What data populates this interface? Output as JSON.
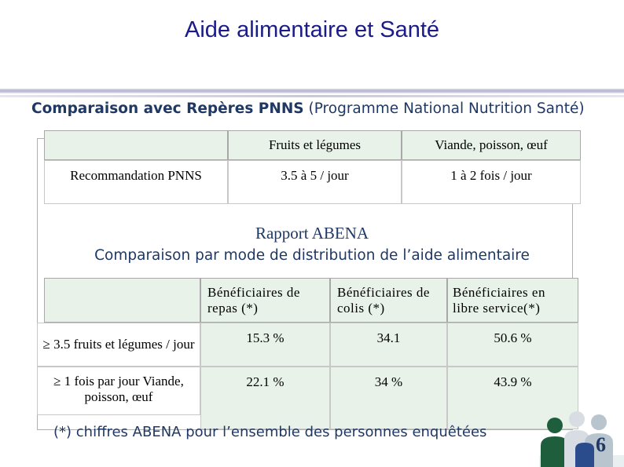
{
  "title": "Aide alimentaire et Santé",
  "subtitle": {
    "bold": "Comparaison avec Repères PNNS",
    "normal": " (Programme National Nutrition Santé)"
  },
  "table1": {
    "headers": [
      "",
      "Fruits et légumes",
      "Viande, poisson, œuf"
    ],
    "row": [
      "Recommandation PNNS",
      "3.5 à 5 / jour",
      "1 à 2 fois / jour"
    ]
  },
  "section2": {
    "heading": "Rapport ABENA",
    "subheading": "Comparaison par mode de distribution de l’aide alimentaire"
  },
  "table2": {
    "headers": [
      "",
      "Bénéficiaires de repas (*)",
      "Bénéficiaires de colis (*)",
      "Bénéficiaires en libre service(*)"
    ],
    "rows": [
      [
        "≥ 3.5 fruits et légumes / jour",
        "15.3 %",
        "34.1",
        "50.6 %"
      ],
      [
        "≥ 1 fois par jour Viande, poisson, œuf",
        "22.1 %",
        "34 %",
        "43.9 %"
      ]
    ]
  },
  "footnote": "(*) chiffres ABENA pour l’ensemble des personnes enquêtées",
  "page_number": "6",
  "colors": {
    "title": "#1b1b8a",
    "text_blue": "#1f3864",
    "cell_green": "#e8f2e8",
    "logo_green": "#1e5e3c"
  },
  "icons": [
    "people-logo-icon"
  ]
}
